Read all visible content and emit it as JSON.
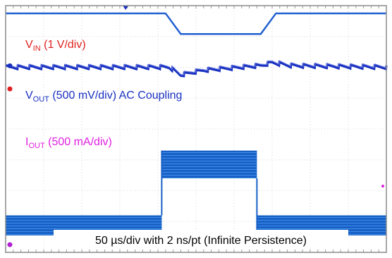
{
  "chart_data": {
    "type": "line",
    "title": "",
    "xlabel": "50 µs/div with 2 ns/pt (Infinite Persistence)",
    "x_divisions": 10,
    "y_divisions": 8,
    "xlim": [
      0,
      10
    ],
    "grid": true,
    "series": [
      {
        "name": "VIN",
        "color": "#e02020",
        "trace_color": "#2060d0",
        "label_main": "V",
        "label_sub": "IN",
        "label_rest": " (1 V/div)",
        "scale": "1 V/div",
        "points": [
          [
            0,
            7.75
          ],
          [
            4.2,
            7.75
          ],
          [
            4.6,
            7.08
          ],
          [
            6.7,
            7.08
          ],
          [
            7.1,
            7.75
          ],
          [
            10,
            7.75
          ]
        ]
      },
      {
        "name": "VOUT",
        "color": "#1830c0",
        "trace_color": "#1830c0",
        "label_main": "V",
        "label_sub": "OUT",
        "label_rest": " (500 mV/div) AC Coupling",
        "scale": "500 mV/div",
        "coupling": "AC",
        "points": [
          [
            0,
            6.0
          ],
          [
            4.3,
            6.0
          ],
          [
            4.6,
            5.75
          ],
          [
            5.2,
            5.9
          ],
          [
            6.7,
            6.05
          ],
          [
            7.0,
            6.15
          ],
          [
            7.5,
            6.05
          ],
          [
            10,
            6.0
          ]
        ]
      },
      {
        "name": "IOUT",
        "color": "#e020e0",
        "trace_color": "#1860c8",
        "label_main": "I",
        "label_sub": "OUT",
        "label_rest": " (500 mA/div)",
        "scale": "500 mA/div",
        "envelope": [
          {
            "x0": 0,
            "x1": 4.1,
            "y_low": 0.55,
            "y_high": 1.2
          },
          {
            "x0": 4.1,
            "x1": 6.6,
            "y_low": 2.4,
            "y_high": 3.3
          },
          {
            "x0": 6.6,
            "x1": 10,
            "y_low": 0.55,
            "y_high": 1.2
          }
        ]
      }
    ]
  }
}
